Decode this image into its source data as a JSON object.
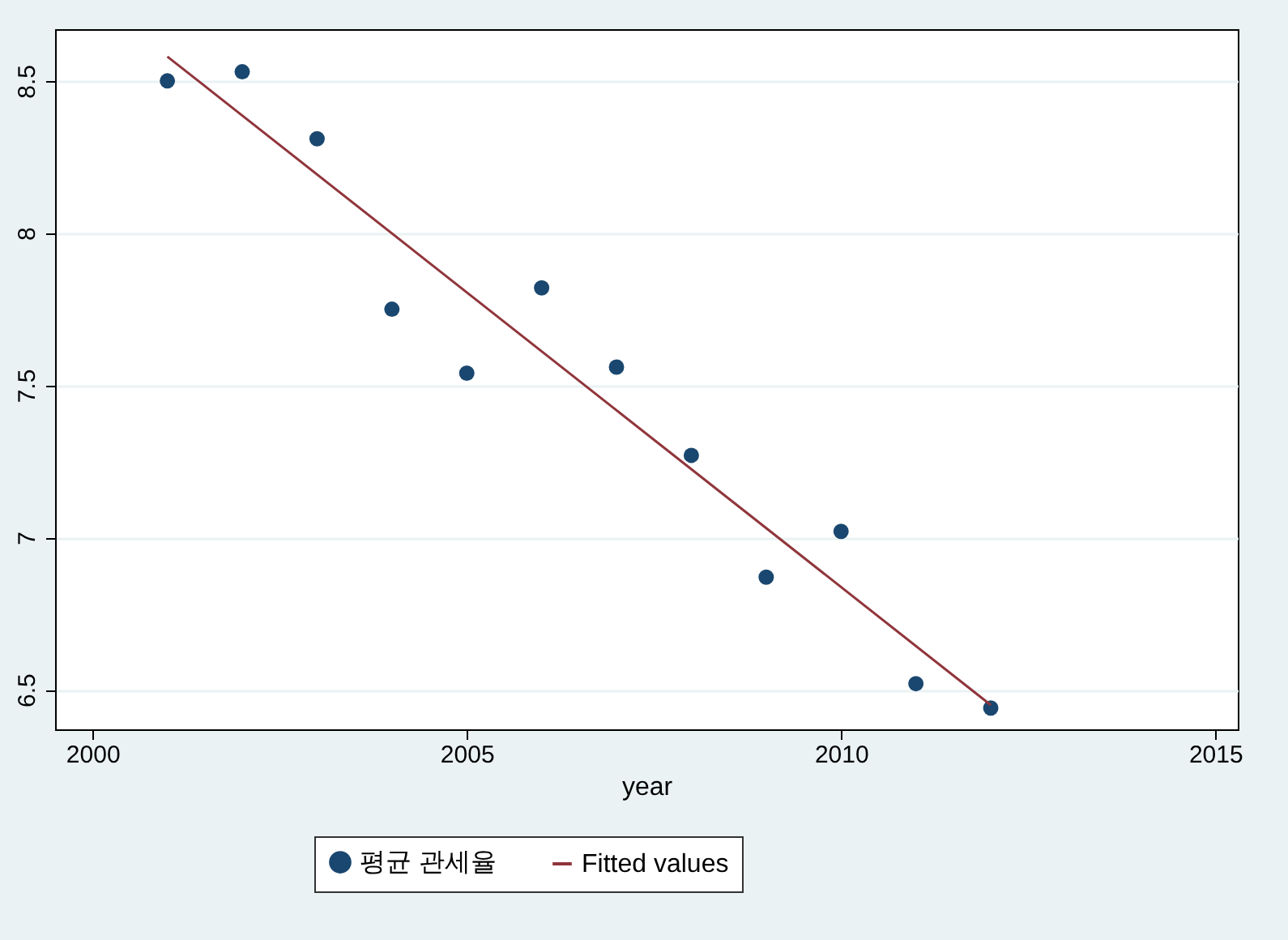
{
  "chart_data": {
    "type": "scatter",
    "xlabel": "year",
    "xlim": [
      1999.5,
      2015.3
    ],
    "xticks": [
      2000,
      2005,
      2010,
      2015
    ],
    "ylim": [
      6.37,
      8.67
    ],
    "yticks": [
      6.5,
      7,
      7.5,
      8,
      8.5
    ],
    "grid": "y",
    "legend": "bottom",
    "series": [
      {
        "name": "평균 관세율",
        "color": "#1a476f",
        "marker": "circle",
        "x": [
          2001,
          2002,
          2003,
          2004,
          2005,
          2006,
          2007,
          2008,
          2009,
          2010,
          2011,
          2012
        ],
        "values": [
          8.5,
          8.53,
          8.31,
          7.75,
          7.54,
          7.82,
          7.56,
          7.27,
          6.87,
          7.02,
          6.52,
          6.44
        ]
      },
      {
        "name": "Fitted values",
        "color": "#90353b",
        "type": "line",
        "line_style": "solid",
        "x": [
          2001,
          2012
        ],
        "values": [
          8.58,
          6.45
        ]
      }
    ]
  }
}
